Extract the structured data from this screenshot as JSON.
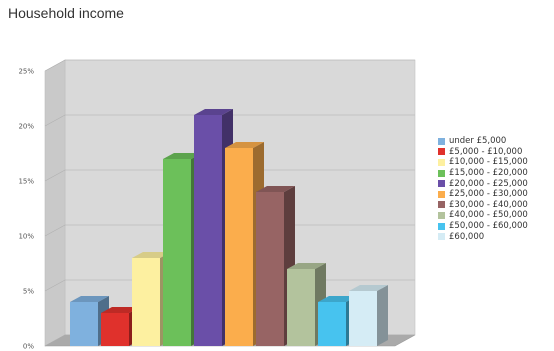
{
  "chart_data": {
    "type": "bar",
    "title": "Household income",
    "xlabel": "",
    "ylabel": "",
    "ylim": [
      0,
      25
    ],
    "yticks": [
      "0%",
      "5%",
      "10%",
      "15%",
      "20%",
      "25%"
    ],
    "ytick_values": [
      0,
      5,
      10,
      15,
      20,
      25
    ],
    "grid": true,
    "legend_position": "right",
    "style": "3d",
    "categories": [
      "under £5,000",
      "£5,000 - £10,000",
      "£10,000 - £15,000",
      "£15,000 - £20,000",
      "£20,000 - £25,000",
      "£25,000 - £30,000",
      "£30,000 - £40,000",
      "£40,000 - £50,000",
      "£50,000 - £60,000",
      "£60,000"
    ],
    "values": [
      4,
      3,
      8,
      17,
      21,
      18,
      14,
      7,
      4,
      5
    ],
    "colors": [
      "#7fb1de",
      "#e0312c",
      "#fdf0a0",
      "#6cc05a",
      "#6a4fa8",
      "#fbad4c",
      "#976464",
      "#b3c39d",
      "#47c3ef",
      "#d5ecf5"
    ]
  }
}
